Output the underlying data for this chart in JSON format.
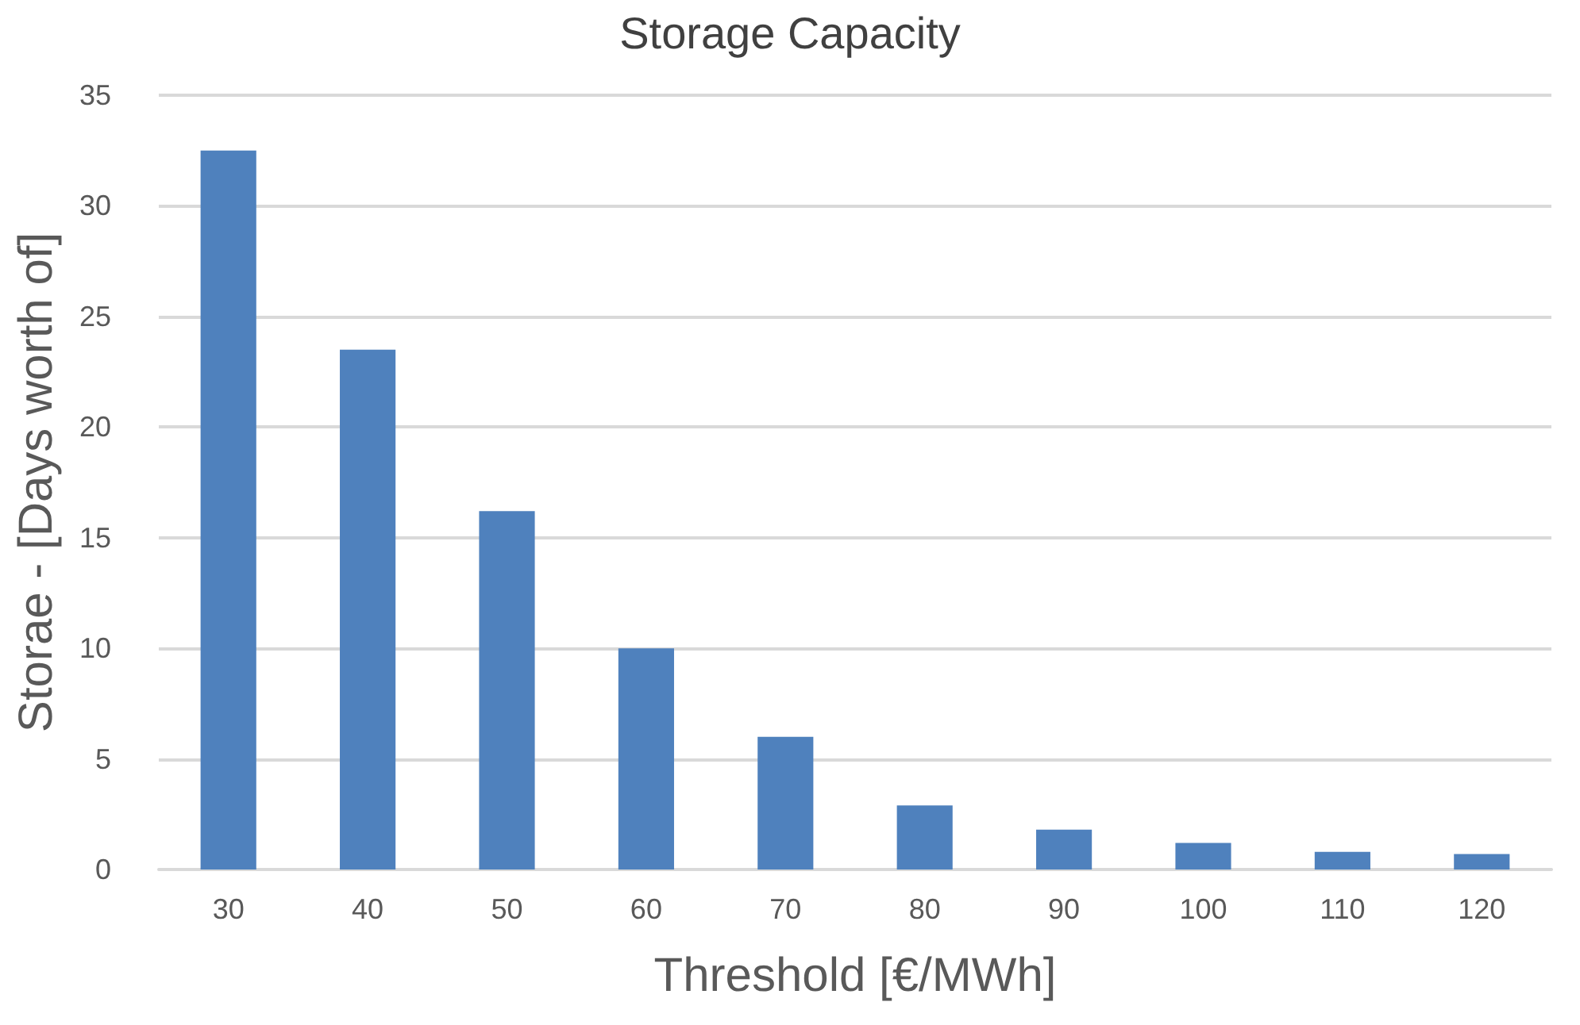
{
  "chart_data": {
    "type": "bar",
    "title": "Storage Capacity",
    "xlabel": "Threshold [€/MWh]",
    "ylabel": "Storae - [Days worth of]",
    "categories": [
      "30",
      "40",
      "50",
      "60",
      "70",
      "80",
      "90",
      "100",
      "110",
      "120"
    ],
    "values": [
      32.5,
      23.5,
      16.2,
      10.0,
      6.0,
      2.9,
      1.8,
      1.2,
      0.8,
      0.7
    ],
    "color": "#4f81bd",
    "ylim": [
      0,
      35
    ],
    "yticks": [
      0,
      5,
      10,
      15,
      20,
      25,
      30,
      35
    ],
    "grid": "y"
  }
}
